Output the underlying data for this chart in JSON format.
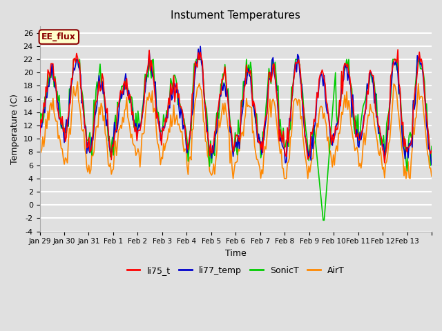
{
  "title": "Instument Temperatures",
  "xlabel": "Time",
  "ylabel": "Temperature (C)",
  "ylim": [
    -4,
    27
  ],
  "yticks": [
    -4,
    -2,
    0,
    2,
    4,
    6,
    8,
    10,
    12,
    14,
    16,
    18,
    20,
    22,
    24,
    26
  ],
  "xtick_labels": [
    "Jan 29",
    "Jan 30",
    "Jan 31",
    "Feb 1",
    "Feb 2",
    "Feb 3",
    "Feb 4",
    "Feb 5",
    "Feb 6",
    "Feb 7",
    "Feb 8",
    "Feb 9",
    "Feb 10",
    "Feb 11",
    "Feb 12",
    "Feb 13",
    ""
  ],
  "bg_color": "#e0e0e0",
  "plot_bg_color": "#e0e0e0",
  "grid_color": "white",
  "annotation_text": "EE_flux",
  "annotation_color": "#8b0000",
  "annotation_bg": "#ffffcc",
  "line_colors": {
    "li75_t": "#ff0000",
    "li77_temp": "#0000cc",
    "SonicT": "#00cc00",
    "AirT": "#ff8800"
  },
  "line_width": 1.2,
  "legend_labels": [
    "li75_t",
    "li77_temp",
    "SonicT",
    "AirT"
  ]
}
